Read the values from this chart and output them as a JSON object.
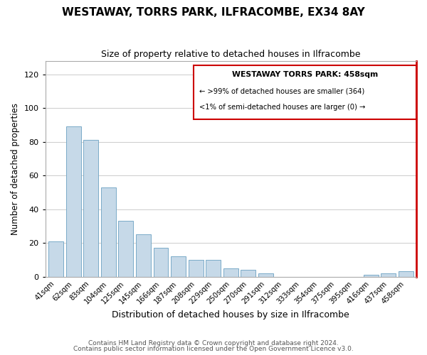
{
  "title": "WESTAWAY, TORRS PARK, ILFRACOMBE, EX34 8AY",
  "subtitle": "Size of property relative to detached houses in Ilfracombe",
  "xlabel": "Distribution of detached houses by size in Ilfracombe",
  "ylabel": "Number of detached properties",
  "bar_color": "#c6d9e8",
  "bar_edge_color": "#7aaac8",
  "categories": [
    "41sqm",
    "62sqm",
    "83sqm",
    "104sqm",
    "125sqm",
    "145sqm",
    "166sqm",
    "187sqm",
    "208sqm",
    "229sqm",
    "250sqm",
    "270sqm",
    "291sqm",
    "312sqm",
    "333sqm",
    "354sqm",
    "375sqm",
    "395sqm",
    "416sqm",
    "437sqm",
    "458sqm"
  ],
  "values": [
    21,
    89,
    81,
    53,
    33,
    25,
    17,
    12,
    10,
    10,
    5,
    4,
    2,
    0,
    0,
    0,
    0,
    0,
    1,
    2,
    3
  ],
  "ylim": [
    0,
    128
  ],
  "yticks": [
    0,
    20,
    40,
    60,
    80,
    100,
    120
  ],
  "legend_title": "WESTAWAY TORRS PARK: 458sqm",
  "legend_line1": "← >99% of detached houses are smaller (364)",
  "legend_line2": "<1% of semi-detached houses are larger (0) →",
  "footer1": "Contains HM Land Registry data © Crown copyright and database right 2024.",
  "footer2": "Contains public sector information licensed under the Open Government Licence v3.0.",
  "grid_color": "#cccccc",
  "red_color": "#cc0000"
}
